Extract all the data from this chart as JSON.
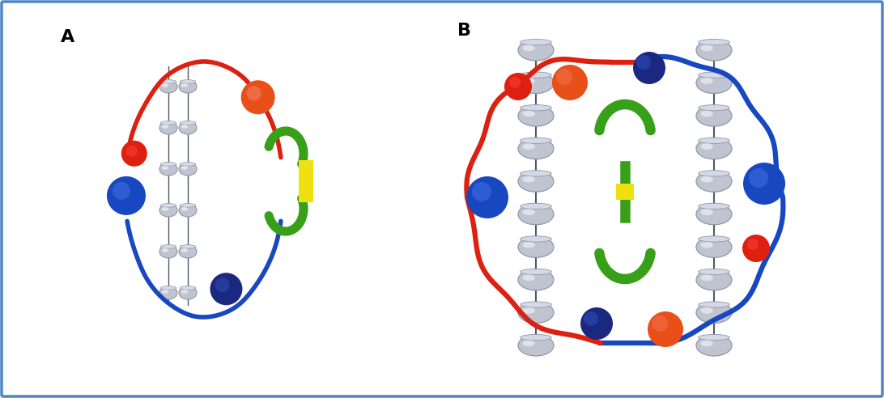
{
  "bg_color": "#ffffff",
  "border_color": "#4a86c8",
  "border_lw": 2.5,
  "label_A": "A",
  "label_B": "B",
  "label_fontsize": 16,
  "red_color": "#dd2010",
  "orange_red_color": "#e85018",
  "blue_color": "#1848c0",
  "dark_blue_color": "#1a2880",
  "green_color": "#38a018",
  "yellow_color": "#f0e010",
  "light_gray": "#c0c4d0",
  "mid_gray": "#9098a8",
  "dark_gray": "#505868"
}
